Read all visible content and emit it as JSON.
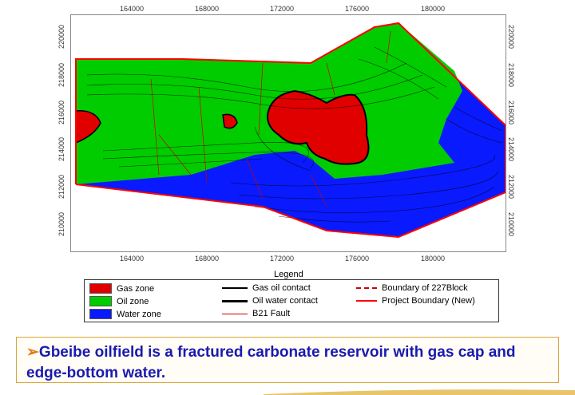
{
  "map": {
    "x_ticks": [
      "164000",
      "168000",
      "172000",
      "176000",
      "180000"
    ],
    "y_ticks": [
      "220000",
      "218000",
      "216000",
      "214000",
      "212000",
      "210000"
    ],
    "y_ticks_right": [
      "220000",
      "218000",
      "216000",
      "214000",
      "212000",
      "210000"
    ],
    "colors": {
      "gas": "#e00000",
      "oil": "#00cc00",
      "water": "#0a1aff",
      "contour": "#000000",
      "boundary": "#ff0000"
    }
  },
  "legend": {
    "title": "Legend",
    "gas_zone": "Gas zone",
    "oil_zone": "Oil zone",
    "water_zone": "Water zone",
    "gas_oil_contact": "Gas oil contact",
    "oil_water_contact": "Oil water contact",
    "b21_fault": "B21 Fault",
    "boundary_227": "Boundary of 227Block",
    "project_boundary": "Project Boundary (New)"
  },
  "caption": {
    "arrow": "➢",
    "text": "Gbeibe oilfield is a fractured carbonate reservoir with gas cap and edge-bottom water."
  }
}
